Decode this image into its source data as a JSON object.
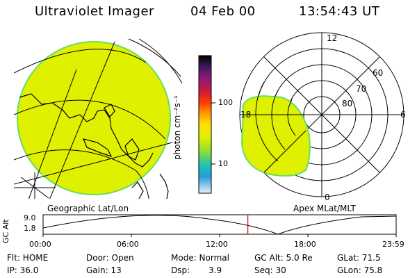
{
  "header": {
    "title": "Ultraviolet Imager",
    "date": "04 Feb 00",
    "time": "13:54:43 UT"
  },
  "colorbar": {
    "unit_label": "photon cm⁻²s⁻¹",
    "tick_100": "100",
    "tick_10": "10"
  },
  "geo_panel": {
    "caption": "Geographic Lat/Lon"
  },
  "polar_panel": {
    "caption": "Apex MLat/MLT",
    "mlt_12": "12",
    "mlt_18": "18",
    "mlt_6": "6",
    "mlt_0": "0",
    "lat_60": "60",
    "lat_70": "70",
    "lat_80": "80"
  },
  "altitude_plot": {
    "y_label": "GC Alt",
    "y_top": "9.0",
    "y_bottom": "1.8",
    "x_ticks": [
      "00:00",
      "06:00",
      "12:00",
      "18:00",
      "23:59"
    ],
    "current_time_fraction": 0.58
  },
  "status": {
    "flt": "Flt: HOME",
    "door": "Door: Open",
    "mode": "Mode: Normal",
    "gc_alt": "GC Alt: 5.0 Re",
    "glat": "GLat: 71.5",
    "ip": "IP: 36.0",
    "gain": "Gain: 13",
    "dsp_label": "Dsp:",
    "dsp_value": "3.9",
    "seq": "Seq: 30",
    "glon": "GLon: 75.8"
  },
  "colors": {
    "emission_fill": "#dff000",
    "emission_edge": "#66dd66",
    "marker": "#cc0000"
  }
}
